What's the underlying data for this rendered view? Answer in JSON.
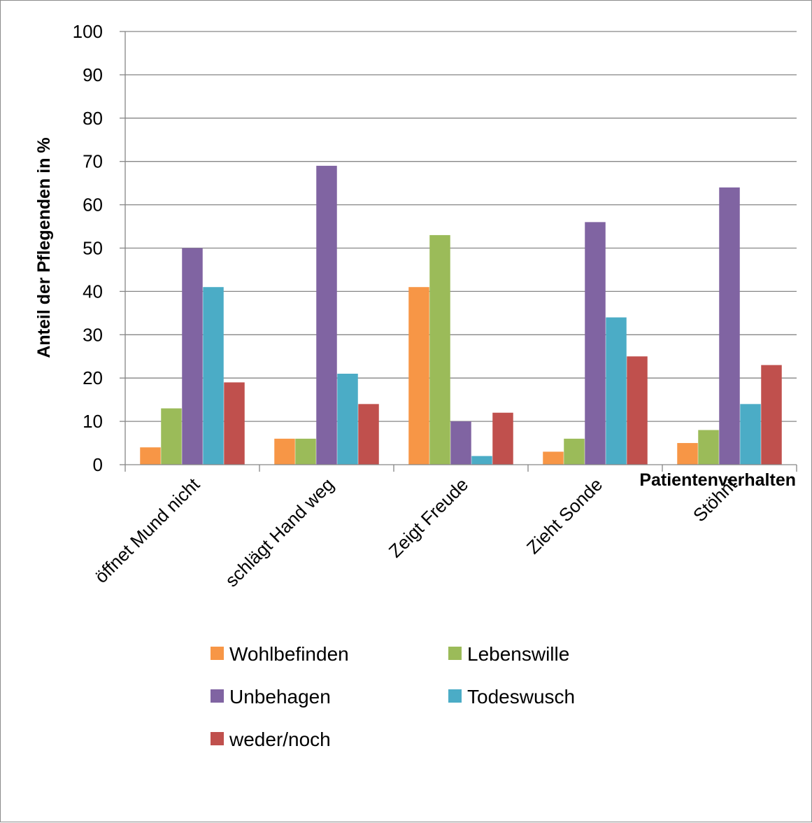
{
  "chart_data": {
    "type": "bar",
    "categories": [
      "öffnet Mund nicht",
      "schlägt Hand weg",
      "Zeigt Freude",
      "Zieht Sonde",
      "Stöhnt"
    ],
    "series": [
      {
        "name": "Wohlbefinden",
        "color": "#F79646",
        "values": [
          4,
          6,
          41,
          3,
          5
        ]
      },
      {
        "name": "Lebenswille",
        "color": "#9BBB59",
        "values": [
          13,
          6,
          53,
          6,
          8
        ]
      },
      {
        "name": "Unbehagen",
        "color": "#8064A2",
        "values": [
          50,
          69,
          10,
          56,
          64
        ]
      },
      {
        "name": "Todeswusch",
        "color": "#4BACC6",
        "values": [
          41,
          21,
          2,
          34,
          14
        ]
      },
      {
        "name": "weder/noch",
        "color": "#C0504D",
        "values": [
          19,
          14,
          12,
          25,
          23
        ]
      }
    ],
    "title": "",
    "xlabel": "Patientenverhalten",
    "ylabel": "Anteil der Pflegenden in %",
    "ylim": [
      0,
      100
    ],
    "yticks": [
      0,
      10,
      20,
      30,
      40,
      50,
      60,
      70,
      80,
      90,
      100
    ],
    "grid": true,
    "legend_position": "bottom"
  }
}
